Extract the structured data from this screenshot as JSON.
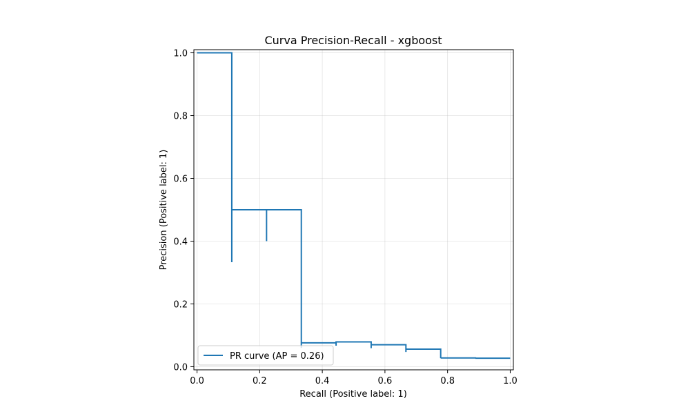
{
  "chart_data": {
    "type": "line",
    "title": "Curva Precision-Recall - xgboost",
    "xlabel": "Recall (Positive label: 1)",
    "ylabel": "Precision (Positive label: 1)",
    "xlim": [
      -0.01,
      1.01
    ],
    "ylim": [
      -0.01,
      1.01
    ],
    "xticks": [
      "0.0",
      "0.2",
      "0.4",
      "0.6",
      "0.8",
      "1.0"
    ],
    "yticks": [
      "0.0",
      "0.2",
      "0.4",
      "0.6",
      "0.8",
      "1.0"
    ],
    "grid": true,
    "legend_position": "lower-left",
    "series": [
      {
        "name": "PR curve (AP = 0.26)",
        "color": "#1f77b4",
        "drawstyle": "steps-post",
        "points": [
          [
            1.0,
            0.027
          ],
          [
            0.889,
            0.026
          ],
          [
            0.889,
            0.028
          ],
          [
            0.778,
            0.027
          ],
          [
            0.778,
            0.056
          ],
          [
            0.667,
            0.047
          ],
          [
            0.667,
            0.07
          ],
          [
            0.556,
            0.059
          ],
          [
            0.556,
            0.079
          ],
          [
            0.444,
            0.067
          ],
          [
            0.444,
            0.076
          ],
          [
            0.333,
            0.06
          ],
          [
            0.333,
            0.5
          ],
          [
            0.222,
            0.4
          ],
          [
            0.222,
            0.5
          ],
          [
            0.111,
            0.333
          ],
          [
            0.111,
            1.0
          ],
          [
            0.0,
            1.0
          ]
        ]
      }
    ]
  }
}
